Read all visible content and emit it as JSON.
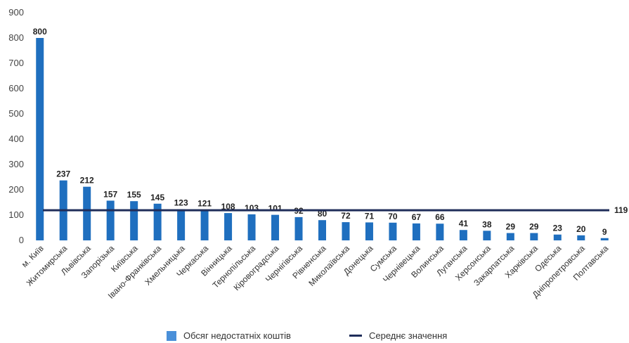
{
  "chart_data": {
    "type": "bar",
    "categories": [
      "м. Київ",
      "Житомирська",
      "Львівська",
      "Запорізька",
      "Київська",
      "Івано-Франківська",
      "Хмельницька",
      "Черкаська",
      "Вінницька",
      "Тернопільська",
      "Кіровоградська",
      "Чернігівська",
      "Рівненська",
      "Миколаївська",
      "Донецька",
      "Сумська",
      "Чернівецька",
      "Волинська",
      "Луганська",
      "Херсонська",
      "Закарпатська",
      "Харківська",
      "Одеська",
      "Дніпропетровська",
      "Полтавська"
    ],
    "series": [
      {
        "name": "Обсяг недостатніх коштів",
        "type": "bar",
        "color": "#1f6fbf",
        "values": [
          800,
          237,
          212,
          157,
          155,
          145,
          123,
          121,
          108,
          103,
          101,
          92,
          80,
          72,
          71,
          70,
          67,
          66,
          41,
          38,
          29,
          29,
          23,
          20,
          9
        ]
      },
      {
        "name": "Середнє значення",
        "type": "line",
        "color": "#1f2d5a",
        "value": 119
      }
    ],
    "ylim": [
      0,
      900
    ],
    "yticks": [
      0,
      100,
      200,
      300,
      400,
      500,
      600,
      700,
      800,
      900
    ],
    "avg_label": "119",
    "grid": false,
    "legend_position": "bottom"
  }
}
